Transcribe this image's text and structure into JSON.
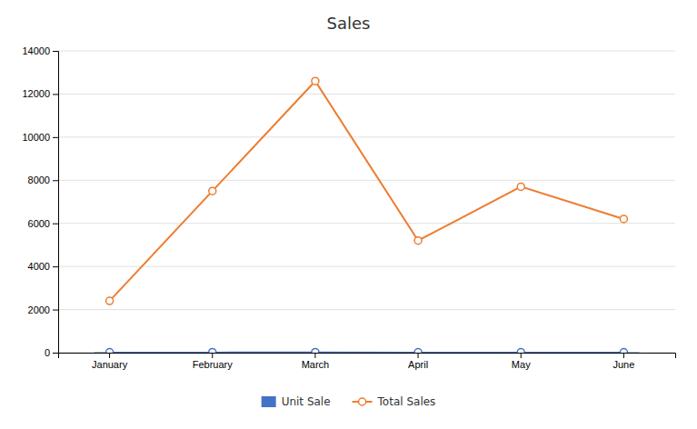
{
  "chart_data": {
    "type": "bar",
    "title": "Sales",
    "categories": [
      "January",
      "February",
      "March",
      "April",
      "May",
      "June"
    ],
    "series": [
      {
        "name": "Unit Sale",
        "type": "bar",
        "color": "#4472C4",
        "marker": "circle",
        "line_style": "solid",
        "values": [
          20,
          22,
          25,
          18,
          21,
          19
        ]
      },
      {
        "name": "Total Sales",
        "type": "line",
        "color": "#ED7D31",
        "marker": "circle",
        "line_style": "solid",
        "values": [
          2400,
          7500,
          12600,
          5200,
          7700,
          6200
        ]
      }
    ],
    "ylim": [
      0,
      14000
    ],
    "yticks": [
      0,
      2000,
      4000,
      6000,
      8000,
      10000,
      12000,
      14000
    ],
    "grid": true
  }
}
